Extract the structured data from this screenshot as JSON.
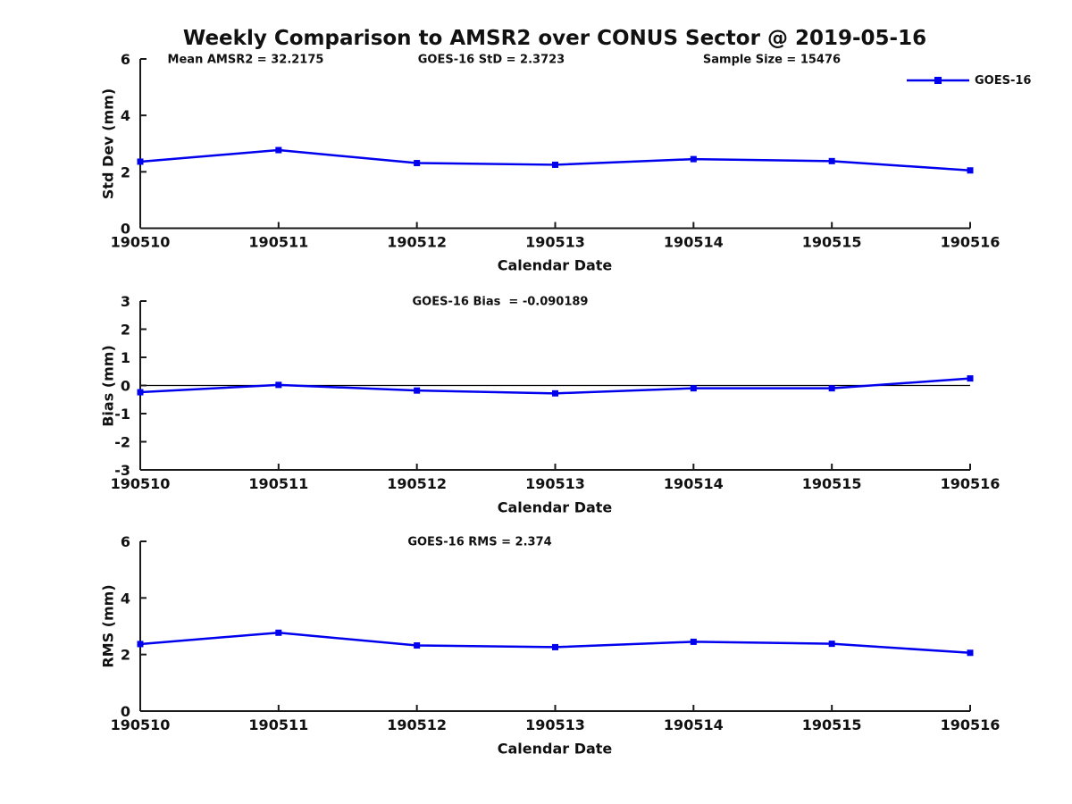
{
  "title": "Weekly Comparison to AMSR2 over CONUS Sector @ 2019-05-16",
  "chart_data": {
    "type": "line",
    "x_categories": [
      "190510",
      "190511",
      "190512",
      "190513",
      "190514",
      "190515",
      "190516"
    ],
    "xlabel": "Calendar Date",
    "legend": {
      "label": "GOES-16",
      "position": "top-right"
    },
    "line_color": "#0000ee",
    "axis_color": "#1a1a1a",
    "marker": "square",
    "grid": false,
    "subplots": [
      {
        "name": "std-dev",
        "ylabel": "Std Dev (mm)",
        "ylim": [
          0,
          6
        ],
        "yticks": [
          0,
          2,
          4,
          6
        ],
        "annotations": [
          {
            "text": "Mean AMSR2 = 32.2175"
          },
          {
            "text": "GOES-16 StD = 2.3723"
          },
          {
            "text": "Sample Size = 15476"
          }
        ],
        "values": [
          2.36,
          2.77,
          2.31,
          2.25,
          2.45,
          2.38,
          2.05
        ]
      },
      {
        "name": "bias",
        "ylabel": "Bias (mm)",
        "ylim": [
          -3,
          3
        ],
        "yticks": [
          3,
          2,
          1,
          0,
          -1,
          -2,
          -3
        ],
        "zero_line": true,
        "annotations": [
          {
            "text": "GOES-16 Bias  = -0.090189"
          }
        ],
        "values": [
          -0.24,
          0.02,
          -0.18,
          -0.28,
          -0.1,
          -0.1,
          0.25
        ]
      },
      {
        "name": "rms",
        "ylabel": "RMS (mm)",
        "ylim": [
          0,
          6
        ],
        "yticks": [
          0,
          2,
          4,
          6
        ],
        "annotations": [
          {
            "text": "GOES-16 RMS = 2.374"
          }
        ],
        "values": [
          2.37,
          2.77,
          2.32,
          2.26,
          2.45,
          2.38,
          2.06
        ]
      }
    ]
  }
}
